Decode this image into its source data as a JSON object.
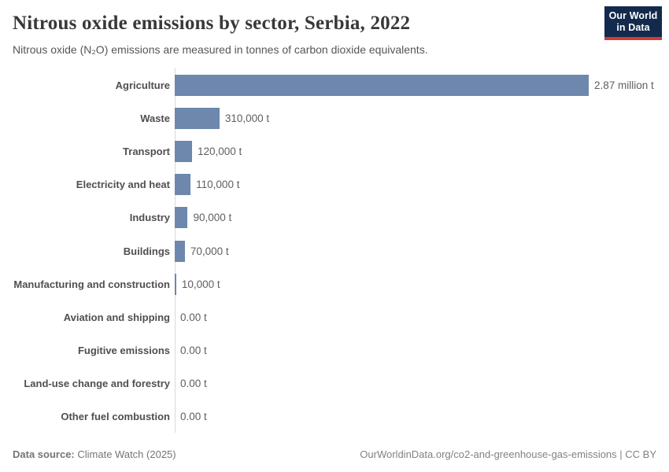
{
  "header": {
    "title": "Nitrous oxide emissions by sector, Serbia, 2022",
    "subtitle": "Nitrous oxide (N₂O) emissions are measured in tonnes of carbon dioxide equivalents.",
    "logo_line1": "Our World",
    "logo_line2": "in Data"
  },
  "chart_data": {
    "type": "bar",
    "orientation": "horizontal",
    "title": "Nitrous oxide emissions by sector, Serbia, 2022",
    "unit": "t",
    "categories": [
      "Agriculture",
      "Waste",
      "Transport",
      "Electricity and heat",
      "Industry",
      "Buildings",
      "Manufacturing and construction",
      "Aviation and shipping",
      "Fugitive emissions",
      "Land-use change and forestry",
      "Other fuel combustion"
    ],
    "values": [
      2870000,
      310000,
      120000,
      110000,
      90000,
      70000,
      10000,
      0,
      0,
      0,
      0
    ],
    "value_labels": [
      "2.87 million t",
      "310,000 t",
      "120,000 t",
      "110,000 t",
      "90,000 t",
      "70,000 t",
      "10,000 t",
      "0.00 t",
      "0.00 t",
      "0.00 t",
      "0.00 t"
    ],
    "xlim": [
      0,
      2870000
    ],
    "grid": false,
    "legend": "none"
  },
  "footer": {
    "datasource_label": "Data source:",
    "datasource_value": "Climate Watch (2025)",
    "right_text": "OurWorldinData.org/co2-and-greenhouse-gas-emissions | CC BY"
  },
  "colors": {
    "bar": "#6d87ad",
    "axis": "#d9d9d9",
    "logo_bg": "#132a4c",
    "logo_underline": "#d13a34",
    "title_text": "#383838",
    "subtitle_text": "#565656",
    "category_text": "#4f4f4f",
    "value_text": "#5f5f5f",
    "footer_text": "#757575"
  }
}
